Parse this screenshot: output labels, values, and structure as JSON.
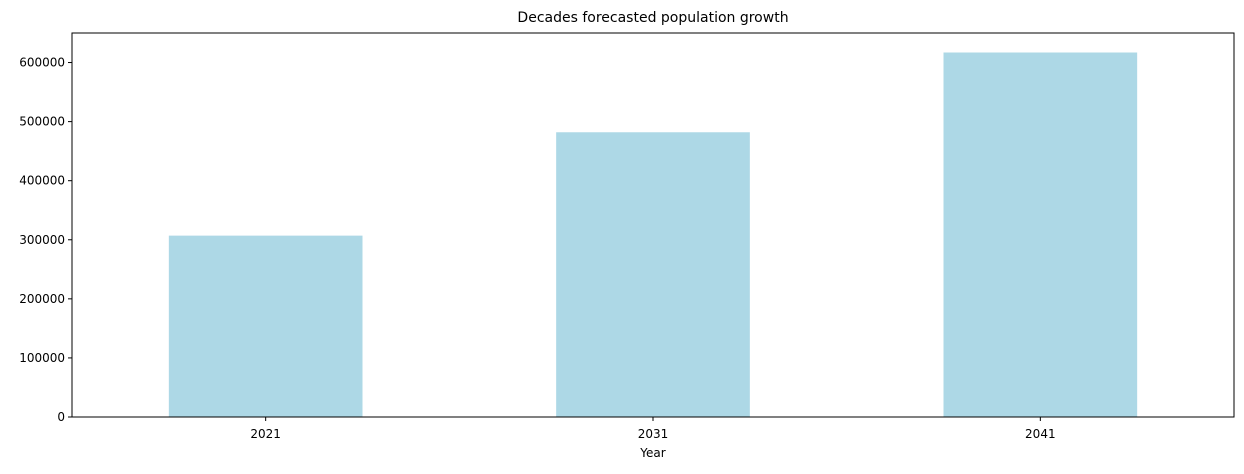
{
  "chart_data": {
    "type": "bar",
    "title": "Decades forecasted population growth",
    "xlabel": "Year",
    "ylabel": "",
    "categories": [
      "2021",
      "2031",
      "2041"
    ],
    "values": [
      307000,
      482000,
      617000
    ],
    "ylim": [
      0,
      650000
    ],
    "yticks": [
      0,
      100000,
      200000,
      300000,
      400000,
      500000,
      600000
    ],
    "ytick_labels": [
      "0",
      "100000",
      "200000",
      "300000",
      "400000",
      "500000",
      "600000"
    ],
    "grid": false,
    "legend": "none",
    "colors": {
      "bar": "#add8e6",
      "axis": "#000000",
      "background": "#ffffff"
    }
  }
}
